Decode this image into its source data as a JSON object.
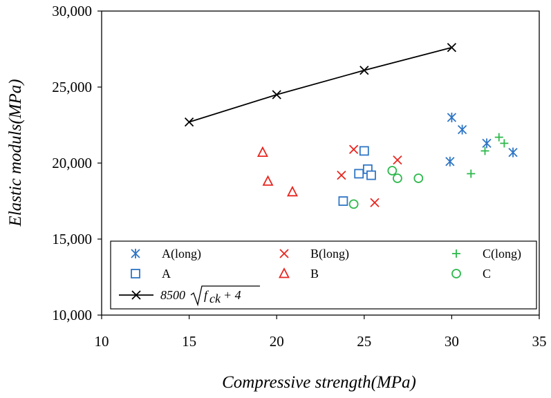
{
  "chart_data": {
    "type": "scatter",
    "title": "",
    "xlabel": "Compressive strength(MPa)",
    "ylabel": "Elastic moduls(MPa)",
    "xlim": [
      10,
      35
    ],
    "ylim": [
      10000,
      30000
    ],
    "x_ticks": [
      10,
      15,
      20,
      25,
      30,
      35
    ],
    "x_tick_labels": [
      "10",
      "15",
      "20",
      "25",
      "30",
      "35"
    ],
    "y_ticks": [
      10000,
      15000,
      20000,
      25000,
      30000
    ],
    "y_tick_labels": [
      "10,000",
      "15,000",
      "20,000",
      "25,000",
      "30,000"
    ],
    "grid": false,
    "legend_position": "bottom",
    "series": [
      {
        "name": "A(long)",
        "marker": "asterisk",
        "color": "#2E75C4",
        "points": [
          [
            30.0,
            23000
          ],
          [
            30.6,
            22200
          ],
          [
            32.0,
            21300
          ],
          [
            33.5,
            20700
          ],
          [
            29.9,
            20100
          ]
        ]
      },
      {
        "name": "B(long)",
        "marker": "x",
        "color": "#E8251F",
        "points": [
          [
            24.4,
            20900
          ],
          [
            26.9,
            20200
          ],
          [
            23.7,
            19200
          ],
          [
            25.6,
            17400
          ]
        ]
      },
      {
        "name": "C(long)",
        "marker": "plus",
        "color": "#2DB84C",
        "points": [
          [
            32.7,
            21700
          ],
          [
            33.0,
            21300
          ],
          [
            31.9,
            20800
          ],
          [
            31.1,
            19300
          ]
        ]
      },
      {
        "name": "A",
        "marker": "square",
        "color": "#2E75C4",
        "points": [
          [
            25.0,
            20800
          ],
          [
            25.2,
            19600
          ],
          [
            24.7,
            19300
          ],
          [
            25.4,
            19200
          ],
          [
            23.8,
            17500
          ]
        ]
      },
      {
        "name": "B",
        "marker": "triangle",
        "color": "#E8251F",
        "points": [
          [
            19.2,
            20700
          ],
          [
            19.5,
            18800
          ],
          [
            20.9,
            18100
          ]
        ]
      },
      {
        "name": "C",
        "marker": "circle",
        "color": "#2DB84C",
        "points": [
          [
            26.6,
            19500
          ],
          [
            26.9,
            19000
          ],
          [
            28.1,
            19000
          ],
          [
            24.4,
            17300
          ]
        ]
      },
      {
        "name": "8500 √(fck + 4)",
        "marker": "x",
        "line": true,
        "color": "#000000",
        "points": [
          [
            15,
            22700
          ],
          [
            20,
            24500
          ],
          [
            25,
            26100
          ],
          [
            30,
            27600
          ]
        ]
      }
    ],
    "legend": {
      "labels": [
        "A(long)",
        "B(long)",
        "C(long)",
        "A",
        "B",
        "C"
      ],
      "formula": {
        "coef": "8500",
        "var": "f",
        "sub": "ck",
        "rest": " + 4"
      }
    }
  }
}
